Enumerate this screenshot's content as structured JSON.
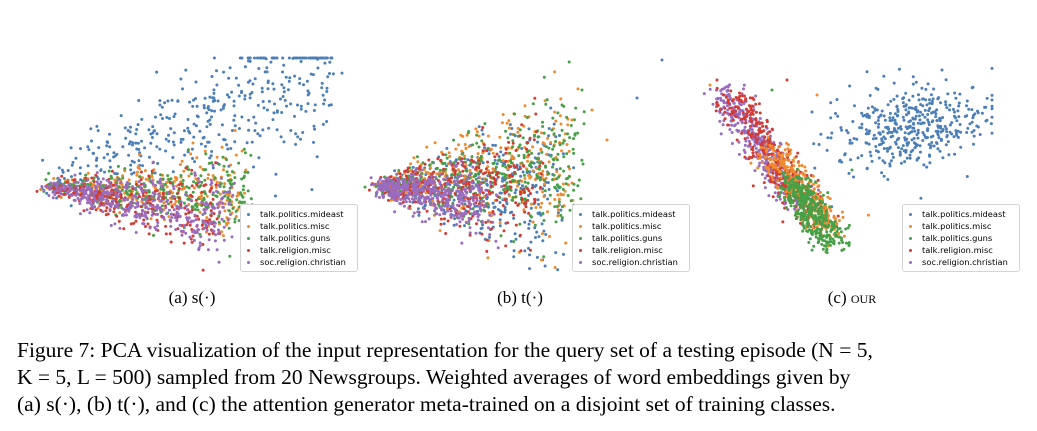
{
  "colors": {
    "talk.politics.mideast": "#4c7fb8",
    "talk.politics.misc": "#ef8a2e",
    "talk.politics.guns": "#46a046",
    "talk.religion.misc": "#d33b33",
    "soc.religion.christian": "#9a6cc0"
  },
  "legend": {
    "entries": [
      "talk.politics.mideast",
      "talk.politics.misc",
      "talk.politics.guns",
      "talk.religion.misc",
      "soc.religion.christian"
    ]
  },
  "subcaptions": {
    "a": "(a) s(·)",
    "b": "(b) t(·)",
    "c_prefix": "(c) ",
    "c_name": "our"
  },
  "caption": {
    "line1": "Figure 7: PCA visualization of the input representation for the query set of a testing episode (N = 5,",
    "line2": "K = 5, L = 500) sampled from 20 Newsgroups. Weighted averages of word embeddings given by",
    "line3": "(a) s(·), (b) t(·), and (c) the attention generator meta-trained on a disjoint set of training classes."
  },
  "chart_data": [
    {
      "type": "scatter",
      "panel": "a",
      "xlabel": "",
      "ylabel": "",
      "axes_visible": false,
      "legend_position": "bottom-right",
      "xlim": [
        0,
        300
      ],
      "ylim": [
        0,
        200
      ],
      "series": [
        {
          "name": "talk.politics.mideast",
          "cluster": {
            "vertex": [
              20,
              64
            ],
            "spread": "fan up-right",
            "extent": [
              20,
              300,
              10,
              190
            ]
          }
        },
        {
          "name": "talk.politics.misc",
          "cluster": {
            "vertex": [
              20,
              64
            ],
            "spread": "wedge right",
            "extent": [
              20,
              230,
              25,
              85
            ]
          }
        },
        {
          "name": "talk.politics.guns",
          "cluster": {
            "vertex": [
              20,
              64
            ],
            "spread": "wedge right",
            "extent": [
              20,
              230,
              30,
              85
            ]
          }
        },
        {
          "name": "talk.religion.misc",
          "cluster": {
            "vertex": [
              20,
              64
            ],
            "spread": "wedge down-right",
            "extent": [
              20,
              200,
              15,
              70
            ]
          }
        },
        {
          "name": "soc.religion.christian",
          "cluster": {
            "vertex": [
              20,
              64
            ],
            "spread": "wedge down-right",
            "extent": [
              20,
              210,
              10,
              60
            ]
          }
        }
      ]
    },
    {
      "type": "scatter",
      "panel": "b",
      "xlabel": "",
      "ylabel": "",
      "axes_visible": false,
      "legend_position": "bottom-right",
      "xlim": [
        0,
        300
      ],
      "ylim": [
        0,
        200
      ],
      "series": [
        {
          "name": "talk.politics.mideast",
          "cluster": {
            "vertex": [
              20,
              64
            ],
            "spread": "broad wedge",
            "extent": [
              20,
              280,
              5,
              190
            ]
          }
        },
        {
          "name": "talk.politics.misc",
          "cluster": {
            "vertex": [
              20,
              64
            ],
            "spread": "broad wedge",
            "extent": [
              20,
              230,
              15,
              160
            ]
          }
        },
        {
          "name": "talk.politics.guns",
          "cluster": {
            "vertex": [
              20,
              64
            ],
            "spread": "broad wedge",
            "extent": [
              20,
              230,
              15,
              170
            ]
          }
        },
        {
          "name": "talk.religion.misc",
          "cluster": {
            "vertex": [
              20,
              64
            ],
            "spread": "broad wedge",
            "extent": [
              20,
              200,
              15,
              120
            ]
          }
        },
        {
          "name": "soc.religion.christian",
          "cluster": {
            "vertex": [
              20,
              64
            ],
            "spread": "tight wedge",
            "extent": [
              20,
              180,
              20,
              90
            ]
          }
        }
      ]
    },
    {
      "type": "scatter",
      "panel": "c",
      "xlabel": "",
      "ylabel": "",
      "axes_visible": false,
      "legend_position": "bottom-right",
      "xlim": [
        0,
        300
      ],
      "ylim": [
        0,
        200
      ],
      "series": [
        {
          "name": "talk.politics.mideast",
          "cluster": {
            "center": [
              205,
              140
            ],
            "spread": "upper-right blob"
          }
        },
        {
          "name": "talk.politics.misc",
          "cluster": {
            "center": [
              105,
              80
            ],
            "spread": "band lower-middle"
          }
        },
        {
          "name": "talk.politics.guns",
          "cluster": {
            "center": [
              120,
              45
            ],
            "spread": "lower point"
          }
        },
        {
          "name": "talk.religion.misc",
          "cluster": {
            "center": [
              70,
              130
            ],
            "spread": "diagonal band"
          }
        },
        {
          "name": "soc.religion.christian",
          "cluster": {
            "center": [
              55,
              145
            ],
            "spread": "diagonal band upper-left"
          }
        }
      ]
    }
  ]
}
